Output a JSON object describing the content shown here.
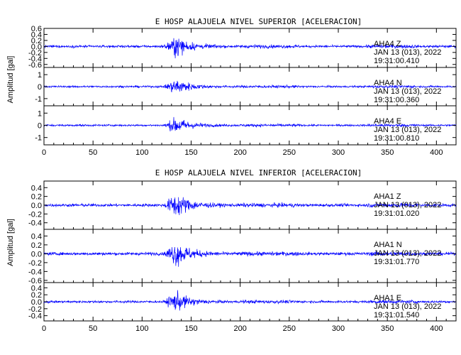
{
  "colors": {
    "trace": "#0000ff",
    "axis": "#000000",
    "background": "#ffffff"
  },
  "chart_data": [
    {
      "type": "line",
      "title": "E HOSP ALAJUELA NIVEL SUPERIOR [ACELERACION]",
      "ylabel": "Amplitud [gal]",
      "xlim": [
        0,
        420
      ],
      "x_ticks": [
        "0",
        "50",
        "100",
        "150",
        "200",
        "250",
        "300",
        "350",
        "400"
      ],
      "grid": false,
      "panels": [
        {
          "channel": "AHA4 Z",
          "station": "AHA4",
          "component": "Z",
          "date": "JAN 13 (013), 2022",
          "time": "19:31:00.410",
          "ylim": [
            -0.7,
            0.6
          ],
          "y_ticks": [
            "0.6",
            "0.4",
            "0.2",
            "0.0",
            "-0.2",
            "-0.4",
            "-0.6"
          ],
          "peak_amplitude": 0.6,
          "event_onset_s": 122,
          "event_peak_s": 135
        },
        {
          "channel": "AHA4 N",
          "station": "AHA4",
          "component": "N",
          "date": "JAN 13 (013), 2022",
          "time": "19:31:00.360",
          "ylim": [
            -1.6,
            1.6
          ],
          "y_ticks": [
            "1",
            "0",
            "-1"
          ],
          "peak_amplitude": 1.2,
          "event_onset_s": 122,
          "event_peak_s": 135
        },
        {
          "channel": "AHA4 E",
          "station": "AHA4",
          "component": "E",
          "date": "JAN 13 (013), 2022",
          "time": "19:31:00.810",
          "ylim": [
            -1.6,
            1.6
          ],
          "y_ticks": [
            "1",
            "0",
            "-1"
          ],
          "peak_amplitude": 1.2,
          "event_onset_s": 122,
          "event_peak_s": 135
        }
      ]
    },
    {
      "type": "line",
      "title": "E HOSP ALAJUELA NIVEL INFERIOR [ACELERACION]",
      "ylabel": "Amplitud [gal]",
      "xlim": [
        0,
        420
      ],
      "x_ticks": [
        "0",
        "50",
        "100",
        "150",
        "200",
        "250",
        "300",
        "350",
        "400"
      ],
      "grid": false,
      "panels": [
        {
          "channel": "AHA1 Z",
          "station": "AHA1",
          "component": "Z",
          "date": "JAN 13 (013), 2022",
          "time": "19:31:01.020",
          "ylim": [
            -0.55,
            0.55
          ],
          "y_ticks": [
            "0.4",
            "0.2",
            "0.0",
            "-0.2",
            "-0.4"
          ],
          "peak_amplitude": 0.5,
          "event_onset_s": 122,
          "event_peak_s": 135
        },
        {
          "channel": "AHA1 N",
          "station": "AHA1",
          "component": "N",
          "date": "JAN 13 (013), 2022",
          "time": "19:31:01.770",
          "ylim": [
            -0.65,
            0.55
          ],
          "y_ticks": [
            "0.4",
            "0.2",
            "0.0",
            "-0.2",
            "-0.4",
            "-0.6"
          ],
          "peak_amplitude": 0.5,
          "event_onset_s": 122,
          "event_peak_s": 135
        },
        {
          "channel": "AHA1 E",
          "station": "AHA1",
          "component": "E",
          "date": "JAN 13 (013), 2022",
          "time": "19:31:01.540",
          "ylim": [
            -0.55,
            0.55
          ],
          "y_ticks": [
            "0.4",
            "0.2",
            "0.0",
            "-0.2",
            "-0.4"
          ],
          "peak_amplitude": 0.5,
          "event_onset_s": 122,
          "event_peak_s": 135
        }
      ]
    }
  ]
}
